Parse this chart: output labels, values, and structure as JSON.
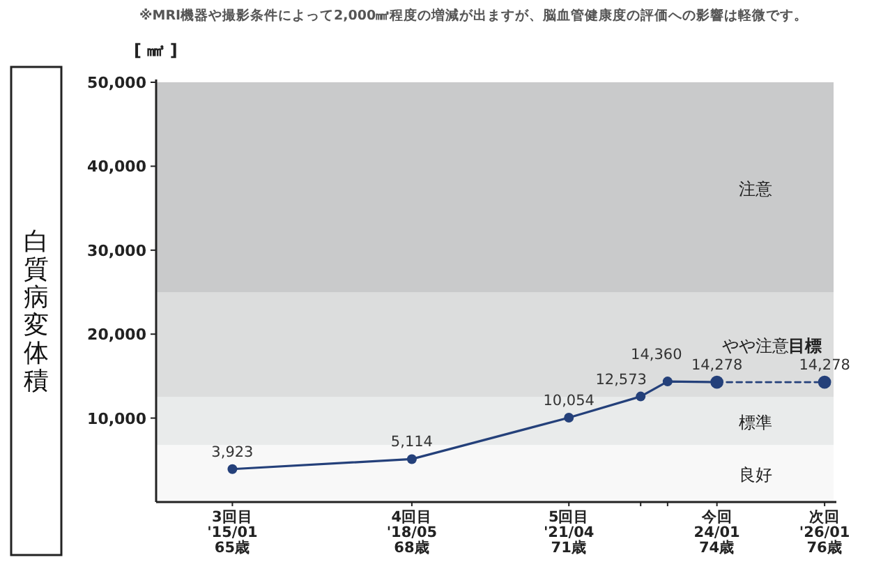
{
  "chart_data": {
    "type": "line",
    "ylabel": "白質病変体積",
    "annotations": [
      "※MRI機器や撮影条件によって2,000㎣程度の増減が出ますが、脳血管健康度の評価への影響は軽微です。",
      "[ ㎣ ]",
      {
        "text": "目標",
        "x": "2026-01",
        "y": 14278
      }
    ],
    "x": [
      "2015-01",
      "2018-05",
      "2021-04",
      "2022-08",
      "2023-02",
      "2024-01",
      "2026-01"
    ],
    "xlim": [
      "2013-08",
      "2026-03"
    ],
    "xticks": [
      {
        "value": "2015-01",
        "label": "3回目\n'15/01\n65歳"
      },
      {
        "value": "2018-05",
        "label": "4回目\n'18/05\n68歳"
      },
      {
        "value": "2021-04",
        "label": "5回目\n'21/04\n71歳"
      },
      {
        "value": "2022-08",
        "label": null
      },
      {
        "value": "2023-02",
        "label": null
      },
      {
        "value": "2024-01",
        "label": "今回\n24/01\n74歳"
      },
      {
        "value": "2026-01",
        "label": "次回\n'26/01\n76歳"
      }
    ],
    "ylim": [
      0,
      50000
    ],
    "yticks": [
      {
        "value": 10000,
        "label": "10,000"
      },
      {
        "value": 20000,
        "label": "20,000"
      },
      {
        "value": 30000,
        "label": "30,000"
      },
      {
        "value": 40000,
        "label": "40,000"
      },
      {
        "value": 50000,
        "label": "50,000"
      }
    ],
    "series": [
      {
        "color": "#24407a",
        "line_style": "solid",
        "values": [
          3923,
          5114,
          10054,
          12573,
          14360,
          14278,
          null
        ],
        "value_labels": [
          "3,923",
          "5,114",
          "10,054",
          "12,573",
          "14,360",
          "14,278",
          null
        ]
      },
      {
        "color": "#24407a",
        "line_style": "dashed",
        "values": [
          null,
          null,
          null,
          null,
          null,
          14278,
          14278
        ],
        "value_labels": [
          null,
          null,
          null,
          null,
          null,
          null,
          "14,278"
        ]
      }
    ],
    "bands": [
      {
        "axis": "y",
        "from": 0,
        "to": 6800,
        "label": "良好",
        "color": "#f8f8f8"
      },
      {
        "axis": "y",
        "from": 6800,
        "to": 12500,
        "label": "標準",
        "color": "#e9ebeb"
      },
      {
        "axis": "y",
        "from": 12500,
        "to": 25000,
        "label": "やや注意",
        "color": "#dcdddd"
      },
      {
        "axis": "y",
        "from": 25000,
        "to": 50000,
        "label": "注意",
        "color": "#c9cacb"
      }
    ],
    "marker": "circle",
    "grid": false
  }
}
